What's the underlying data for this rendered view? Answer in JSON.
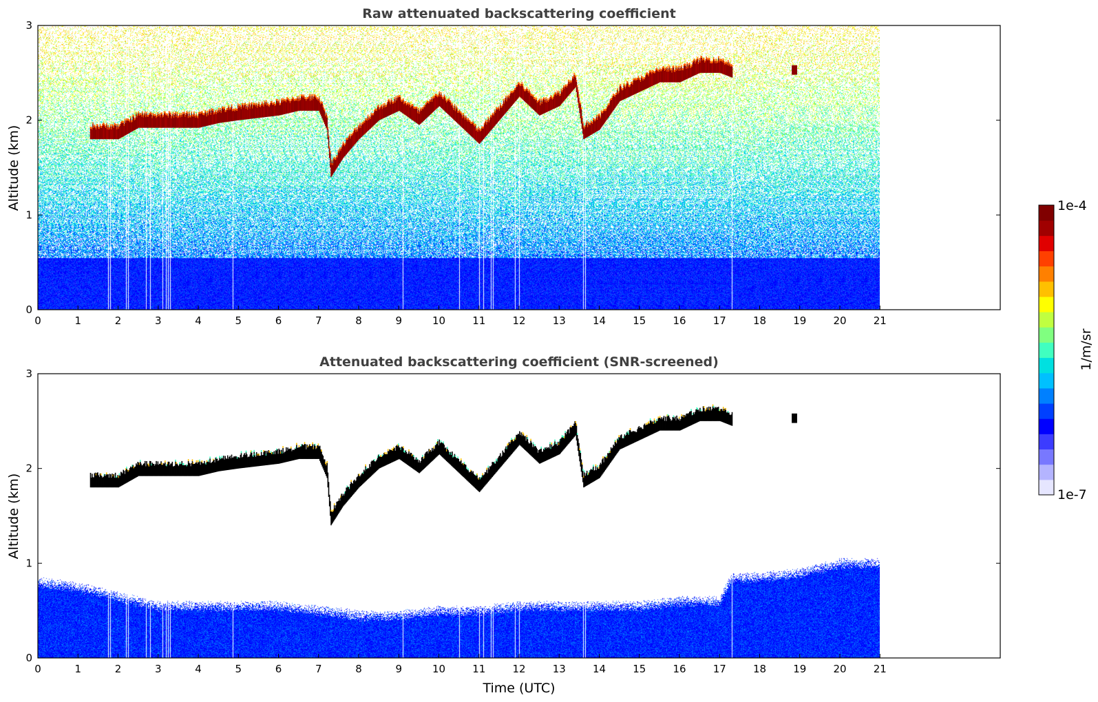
{
  "chart_data": [
    {
      "type": "heatmap",
      "title": "Raw attenuated backscattering coefficient",
      "xlabel": "",
      "ylabel": "Altitude (km)",
      "xlim": [
        0,
        24
      ],
      "ylim": [
        0,
        3
      ],
      "xticks": [
        0,
        1,
        2,
        3,
        4,
        5,
        6,
        7,
        8,
        9,
        10,
        11,
        12,
        13,
        14,
        15,
        16,
        17,
        18,
        19,
        20,
        21
      ],
      "yticks": [
        0,
        1,
        2,
        3
      ],
      "data_end_time": 21,
      "dropout_times": [
        1.75,
        1.8,
        2.2,
        2.25,
        2.7,
        2.8,
        3.1,
        3.2,
        3.25,
        3.3,
        4.85,
        9.1,
        10.5,
        11.0,
        11.1,
        11.3,
        11.35,
        11.9,
        12.0,
        13.6,
        13.65,
        17.3
      ],
      "cloud_base_km": [
        [
          1.3,
          1.8
        ],
        [
          2.0,
          1.8
        ],
        [
          2.5,
          1.92
        ],
        [
          3.0,
          1.92
        ],
        [
          4.0,
          1.92
        ],
        [
          4.5,
          1.97
        ],
        [
          5.0,
          2.0
        ],
        [
          6.0,
          2.05
        ],
        [
          6.5,
          2.1
        ],
        [
          7.0,
          2.1
        ],
        [
          7.2,
          1.9
        ],
        [
          7.3,
          1.4
        ],
        [
          7.6,
          1.6
        ],
        [
          8.0,
          1.8
        ],
        [
          8.5,
          2.0
        ],
        [
          9.0,
          2.1
        ],
        [
          9.5,
          1.95
        ],
        [
          10.0,
          2.15
        ],
        [
          10.5,
          1.95
        ],
        [
          11.0,
          1.75
        ],
        [
          11.5,
          2.0
        ],
        [
          12.0,
          2.25
        ],
        [
          12.5,
          2.05
        ],
        [
          13.0,
          2.15
        ],
        [
          13.4,
          2.35
        ],
        [
          13.6,
          1.8
        ],
        [
          14.0,
          1.9
        ],
        [
          14.5,
          2.2
        ],
        [
          15.0,
          2.3
        ],
        [
          15.5,
          2.4
        ],
        [
          16.0,
          2.4
        ],
        [
          16.5,
          2.5
        ],
        [
          17.0,
          2.5
        ],
        [
          17.3,
          2.45
        ],
        [
          18.8,
          2.48
        ],
        [
          18.9,
          2.5
        ]
      ],
      "noise_level": "high above boundary layer"
    },
    {
      "type": "heatmap",
      "title": "Attenuated backscattering coefficient (SNR-screened)",
      "xlabel": "Time (UTC)",
      "ylabel": "Altitude (km)",
      "xlim": [
        0,
        24
      ],
      "ylim": [
        0,
        3
      ],
      "xticks": [
        0,
        1,
        2,
        3,
        4,
        5,
        6,
        7,
        8,
        9,
        10,
        11,
        12,
        13,
        14,
        15,
        16,
        17,
        18,
        19,
        20,
        21
      ],
      "yticks": [
        0,
        1,
        2,
        3
      ],
      "data_end_time": 21,
      "boundary_layer_top_km": [
        [
          0,
          0.8
        ],
        [
          1,
          0.75
        ],
        [
          2,
          0.65
        ],
        [
          3,
          0.55
        ],
        [
          4,
          0.55
        ],
        [
          5,
          0.55
        ],
        [
          6,
          0.55
        ],
        [
          7,
          0.5
        ],
        [
          8,
          0.45
        ],
        [
          9,
          0.45
        ],
        [
          10,
          0.5
        ],
        [
          11,
          0.5
        ],
        [
          12,
          0.55
        ],
        [
          13,
          0.55
        ],
        [
          14,
          0.55
        ],
        [
          15,
          0.55
        ],
        [
          16,
          0.6
        ],
        [
          17,
          0.6
        ],
        [
          17.3,
          0.85
        ],
        [
          18,
          0.85
        ],
        [
          19,
          0.9
        ],
        [
          20,
          1.0
        ],
        [
          21,
          1.0
        ]
      ],
      "cloud_layer": "same as raw panel"
    }
  ],
  "colorbar": {
    "label": "1/m/sr",
    "max_label": "1e-4",
    "min_label": "1e-7",
    "colormap": [
      "#e6e6ff",
      "#b4b4ff",
      "#7878ff",
      "#3c3cff",
      "#0000ff",
      "#0040ff",
      "#0080ff",
      "#00c0ff",
      "#00e0e0",
      "#40ffc0",
      "#80ff80",
      "#c0ff40",
      "#ffff00",
      "#ffc000",
      "#ff8000",
      "#ff4000",
      "#e00000",
      "#a00000",
      "#800000"
    ]
  }
}
